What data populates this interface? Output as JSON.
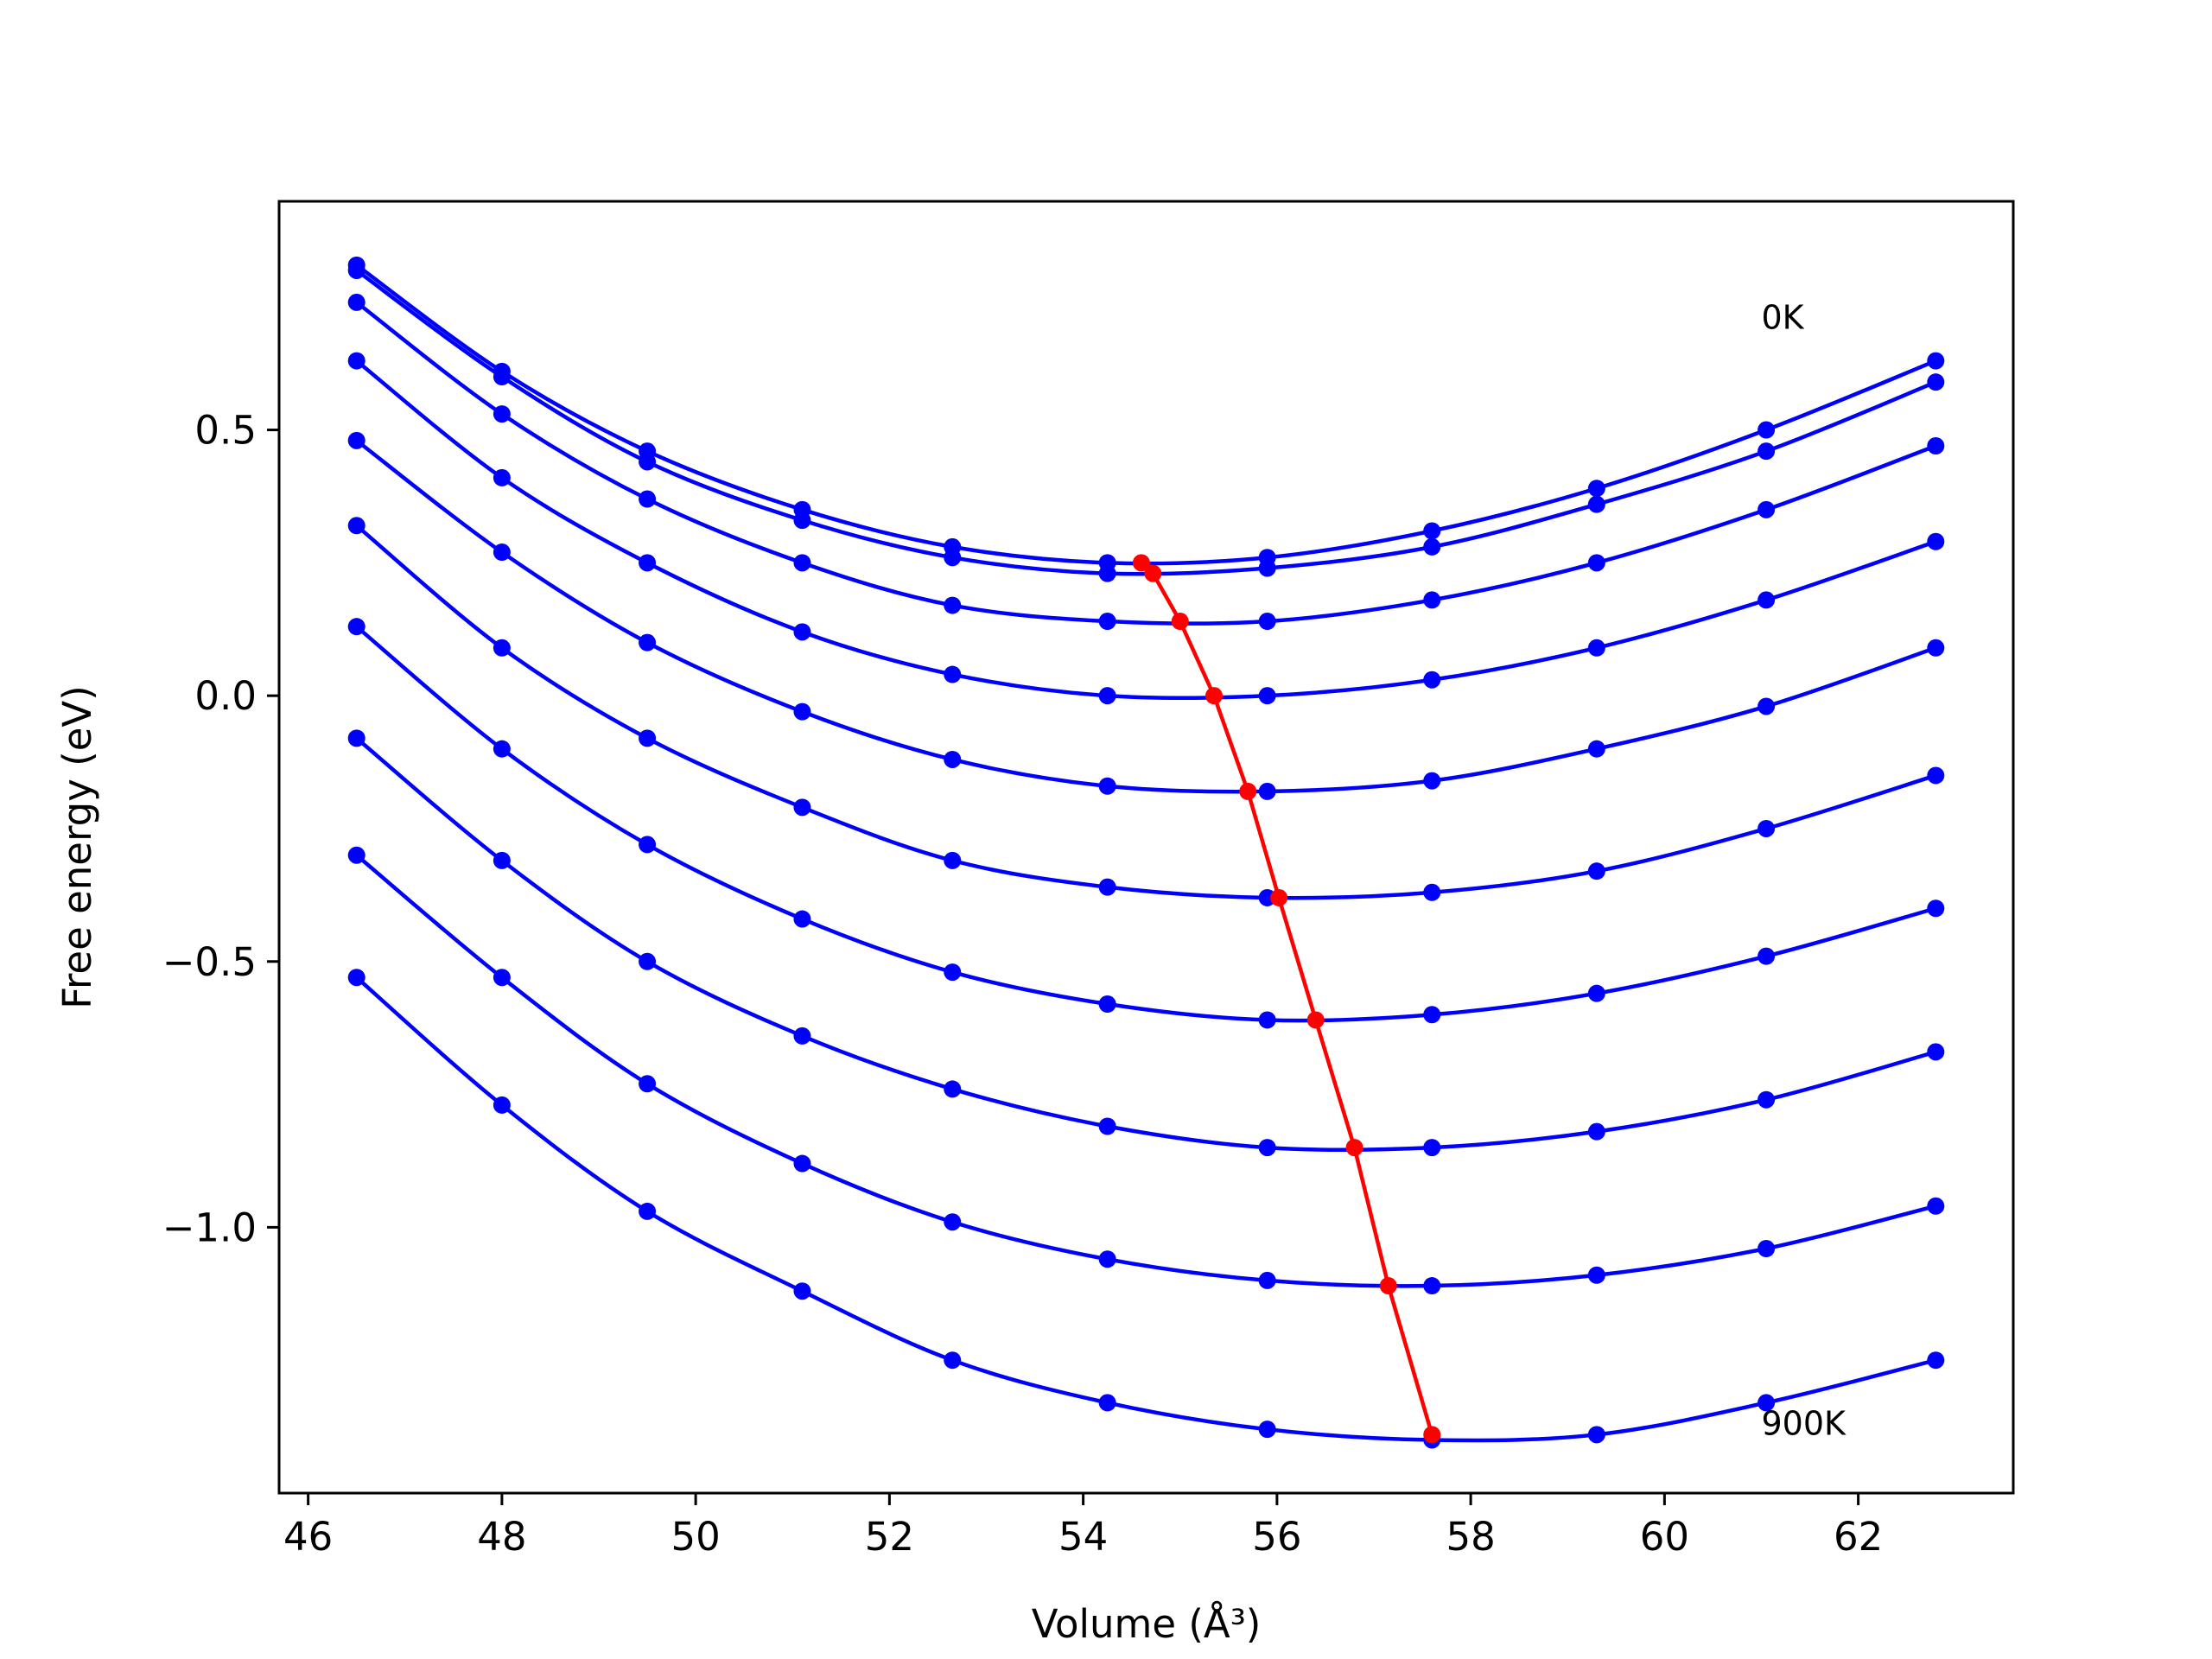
{
  "chart_data": {
    "type": "line",
    "xlabel": "Volume (Å³)",
    "ylabel": "Free energy (eV)",
    "xlim": [
      45.7,
      63.6
    ],
    "ylim": [
      -1.5,
      0.93
    ],
    "xticks": [
      46,
      48,
      50,
      52,
      54,
      56,
      58,
      60,
      62
    ],
    "yticks": [
      -1.0,
      -0.5,
      0.0,
      0.5
    ],
    "ytick_labels": [
      "−1.0",
      "−0.5",
      "0.0",
      "0.5"
    ],
    "grid": false,
    "annotations": [
      {
        "text": "0K",
        "x": 61.0,
        "y": 0.69
      },
      {
        "text": "900K",
        "x": 61.0,
        "y": -1.39
      }
    ],
    "x": [
      46.5,
      48.0,
      49.5,
      51.1,
      52.65,
      54.25,
      55.9,
      57.6,
      59.3,
      61.05,
      62.8
    ],
    "series": [
      {
        "values": [
          0.81,
          0.61,
          0.46,
          0.35,
          0.28,
          0.25,
          0.26,
          0.31,
          0.39,
          0.5,
          0.63
        ]
      },
      {
        "values": [
          0.8,
          0.6,
          0.44,
          0.33,
          0.26,
          0.23,
          0.24,
          0.28,
          0.36,
          0.46,
          0.59
        ]
      },
      {
        "values": [
          0.74,
          0.53,
          0.37,
          0.25,
          0.17,
          0.14,
          0.14,
          0.18,
          0.25,
          0.35,
          0.47
        ]
      },
      {
        "values": [
          0.63,
          0.41,
          0.25,
          0.12,
          0.04,
          0.0,
          0.0,
          0.03,
          0.09,
          0.18,
          0.29
        ]
      },
      {
        "values": [
          0.48,
          0.27,
          0.1,
          -0.03,
          -0.12,
          -0.17,
          -0.18,
          -0.16,
          -0.1,
          -0.02,
          0.09
        ]
      },
      {
        "values": [
          0.32,
          0.09,
          -0.08,
          -0.21,
          -0.31,
          -0.36,
          -0.38,
          -0.37,
          -0.33,
          -0.25,
          -0.15
        ]
      },
      {
        "values": [
          0.13,
          -0.1,
          -0.28,
          -0.42,
          -0.52,
          -0.58,
          -0.61,
          -0.6,
          -0.56,
          -0.49,
          -0.4
        ]
      },
      {
        "values": [
          -0.08,
          -0.31,
          -0.5,
          -0.64,
          -0.74,
          -0.81,
          -0.85,
          -0.85,
          -0.82,
          -0.76,
          -0.67
        ]
      },
      {
        "values": [
          -0.3,
          -0.53,
          -0.73,
          -0.88,
          -0.99,
          -1.06,
          -1.1,
          -1.11,
          -1.09,
          -1.04,
          -0.96
        ]
      },
      {
        "values": [
          -0.53,
          -0.77,
          -0.97,
          -1.12,
          -1.25,
          -1.33,
          -1.38,
          -1.4,
          -1.39,
          -1.33,
          -1.25
        ]
      }
    ],
    "minima": {
      "x": [
        54.6,
        54.72,
        55.0,
        55.35,
        55.7,
        56.02,
        56.4,
        56.8,
        57.15,
        57.6
      ],
      "y": [
        0.25,
        0.23,
        0.14,
        0.0,
        -0.18,
        -0.38,
        -0.61,
        -0.85,
        -1.11,
        -1.39
      ]
    },
    "colors": {
      "curves": "#0000ff",
      "minima": "#ff0000",
      "axes": "#000000"
    }
  }
}
